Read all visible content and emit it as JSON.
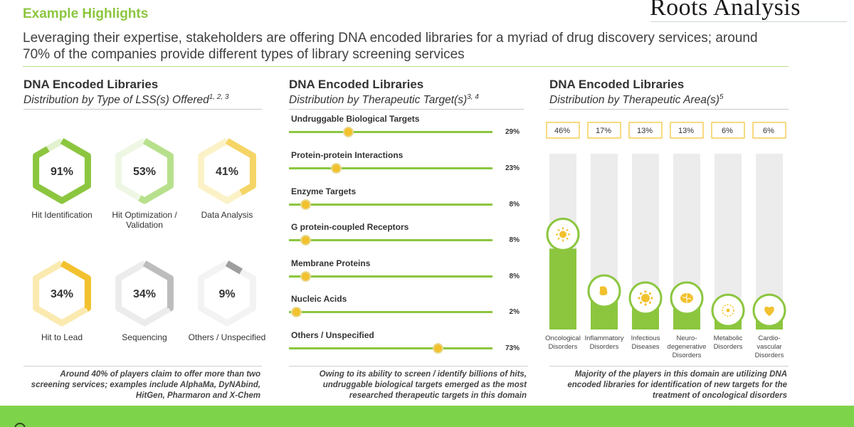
{
  "header": {
    "title": "Example Highlights",
    "subtitle": "Leveraging their expertise, stakeholders are offering DNA encoded libraries for a myriad of drug discovery services; around 70% of the companies provide different types of library screening services",
    "logo": "Roots Analysis"
  },
  "colors": {
    "accent": "#8cc63f",
    "gold": "#f2c12e",
    "band": "#7dd34a"
  },
  "panel1": {
    "title": "DNA Encoded Libraries",
    "subtitle": "Distribution by Type of LSS(s) Offered",
    "subtitle_refs": "1, 2, 3",
    "footnote": "Around 40% of players claim to offer more than two screening services; examples include AlphaMa, DyNAbind, HitGen, Pharmaron and X-Chem"
  },
  "panel2": {
    "title": "DNA Encoded Libraries",
    "subtitle": "Distribution by Therapeutic Target(s)",
    "subtitle_refs": "3, 4",
    "footnote": "Owing to its ability to screen / identify billions of hits, undruggable biological targets emerged as the most researched therapeutic targets in this domain"
  },
  "panel3": {
    "title": "DNA Encoded Libraries",
    "subtitle": "Distribution by Therapeutic Area(s)",
    "subtitle_refs": "5",
    "footnote": "Majority of the players in this domain are utilizing DNA encoded libraries for identification of new targets for the treatment of oncological disorders"
  },
  "chart_data": [
    {
      "type": "radial",
      "categories": [
        "Hit Identification",
        "Hit Optimization / Validation",
        "Data Analysis",
        "Hit to Lead",
        "Sequencing",
        "Others / Unspecified"
      ],
      "value_labels": [
        "91%",
        "53%",
        "41%",
        "34%",
        "34%",
        "9%"
      ],
      "values": [
        91,
        53,
        41,
        34,
        34,
        9
      ],
      "colors": [
        "#8cc63f",
        "#b7e08c",
        "#f5d565",
        "#f2c12e",
        "#bdbdbd",
        "#9e9e9e"
      ],
      "track_colors": [
        "#e2f2cf",
        "#eef7e4",
        "#fcf2c8",
        "#fbeab0",
        "#ececec",
        "#f3f3f3"
      ]
    },
    {
      "type": "bar",
      "categories": [
        "Undruggable Biological Targets",
        "Protein-protein Interactions",
        "Enzyme Targets",
        "G protein-coupled Receptors",
        "Membrane Proteins",
        "Nucleic Acids",
        "Others / Unspecified"
      ],
      "value_labels": [
        "29%",
        "23%",
        "8%",
        "8%",
        "8%",
        "2%",
        "73%"
      ],
      "values": [
        29,
        23,
        8,
        8,
        8,
        2,
        73
      ],
      "xlim": [
        0,
        100
      ]
    },
    {
      "type": "bar",
      "categories": [
        "Oncological Disorders",
        "Inflammatory Disorders",
        "Infectious Diseases",
        "Neuro-degenerative Disorders",
        "Metabolic Disorders",
        "Cardio-vascular Disorders"
      ],
      "category_lines": [
        [
          "Oncological",
          "Disorders"
        ],
        [
          "Inflammatory",
          "Disorders"
        ],
        [
          "Infectious",
          "Diseases"
        ],
        [
          "Neuro-",
          "degenerative",
          "Disorders"
        ],
        [
          "Metabolic",
          "Disorders"
        ],
        [
          "Cardio-",
          "vascular",
          "Disorders"
        ]
      ],
      "value_labels": [
        "46%",
        "17%",
        "13%",
        "13%",
        "6%",
        "6%"
      ],
      "values": [
        46,
        17,
        13,
        13,
        6,
        6
      ],
      "icons": [
        "sun-icon",
        "stomach-icon",
        "virus-icon",
        "brain-icon",
        "cell-icon",
        "heart-icon"
      ],
      "ylim": [
        0,
        100
      ]
    }
  ]
}
